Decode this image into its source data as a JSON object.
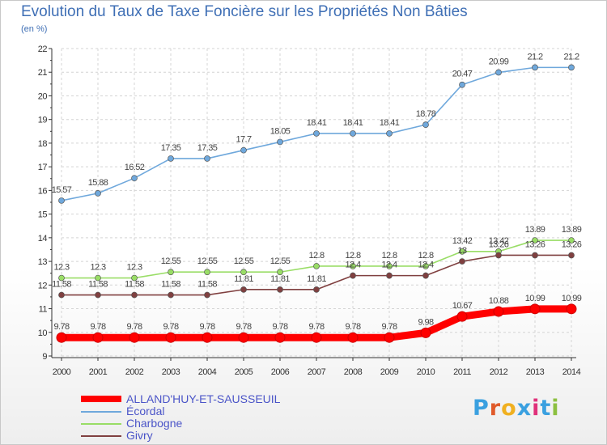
{
  "header": {
    "title": "Evolution du Taux de Taxe Foncière sur les Propriétés Non Bâties",
    "unit": "(en %)"
  },
  "logo": {
    "text": "Proxiti",
    "colors": [
      "#3aa0e0",
      "#e05a2a",
      "#f0b020",
      "#3aa0e0",
      "#e0307a",
      "#3aa0e0",
      "#8cc040"
    ]
  },
  "chart_data": {
    "type": "line",
    "x": [
      2000,
      2001,
      2002,
      2003,
      2004,
      2005,
      2006,
      2007,
      2008,
      2009,
      2010,
      2011,
      2012,
      2013,
      2014
    ],
    "ylim": [
      9,
      22
    ],
    "yticks": [
      9,
      10,
      11,
      12,
      13,
      14,
      15,
      16,
      17,
      18,
      19,
      20,
      21,
      22
    ],
    "grid": true,
    "legend_position": "bottom-left",
    "series": [
      {
        "name": "ALLAND'HUY-ET-SAUSSEUIL",
        "values": [
          9.78,
          9.78,
          9.78,
          9.78,
          9.78,
          9.78,
          9.78,
          9.78,
          9.78,
          9.78,
          9.98,
          10.67,
          10.88,
          10.99,
          10.99
        ],
        "labels": [
          "9.78",
          "9.78",
          "9.78",
          "9.78",
          "9.78",
          "9.78",
          "9.78",
          "9.78",
          "9.78",
          "9.78",
          "9.98",
          "10.67",
          "10.88",
          "10.99",
          "10.99"
        ],
        "color": "#ff0000"
      },
      {
        "name": "Écordal",
        "values": [
          15.57,
          15.88,
          16.52,
          17.35,
          17.35,
          17.7,
          18.05,
          18.41,
          18.41,
          18.41,
          18.78,
          20.47,
          20.99,
          21.2,
          21.2
        ],
        "labels": [
          "15.57",
          "15.88",
          "16.52",
          "17.35",
          "17.35",
          "17.7",
          "18.05",
          "18.41",
          "18.41",
          "18.41",
          "18.78",
          "20.47",
          "20.99",
          "21.2",
          "21.2"
        ],
        "color": "#6fa8dc"
      },
      {
        "name": "Charbogne",
        "values": [
          12.3,
          12.3,
          12.3,
          12.55,
          12.55,
          12.55,
          12.55,
          12.8,
          12.8,
          12.8,
          12.8,
          13.42,
          13.42,
          13.89,
          13.89
        ],
        "labels": [
          "12.3",
          "12.3",
          "12.3",
          "12.55",
          "12.55",
          "12.55",
          "12.55",
          "12.8",
          "12.8",
          "12.8",
          "12.8",
          "13.42",
          "13.42",
          "13.89",
          "13.89"
        ],
        "color": "#99dd66"
      },
      {
        "name": "Givry",
        "values": [
          11.58,
          11.58,
          11.58,
          11.58,
          11.58,
          11.81,
          11.81,
          11.81,
          12.4,
          12.4,
          12.4,
          13.0,
          13.26,
          13.26,
          13.26
        ],
        "labels": [
          "11.58",
          "11.58",
          "11.58",
          "11.58",
          "11.58",
          "11.81",
          "11.81",
          "11.81",
          "12.4",
          "12.4",
          "12.4",
          "13",
          "13.26",
          "13.26",
          "13.26"
        ],
        "color": "#804040"
      }
    ]
  }
}
